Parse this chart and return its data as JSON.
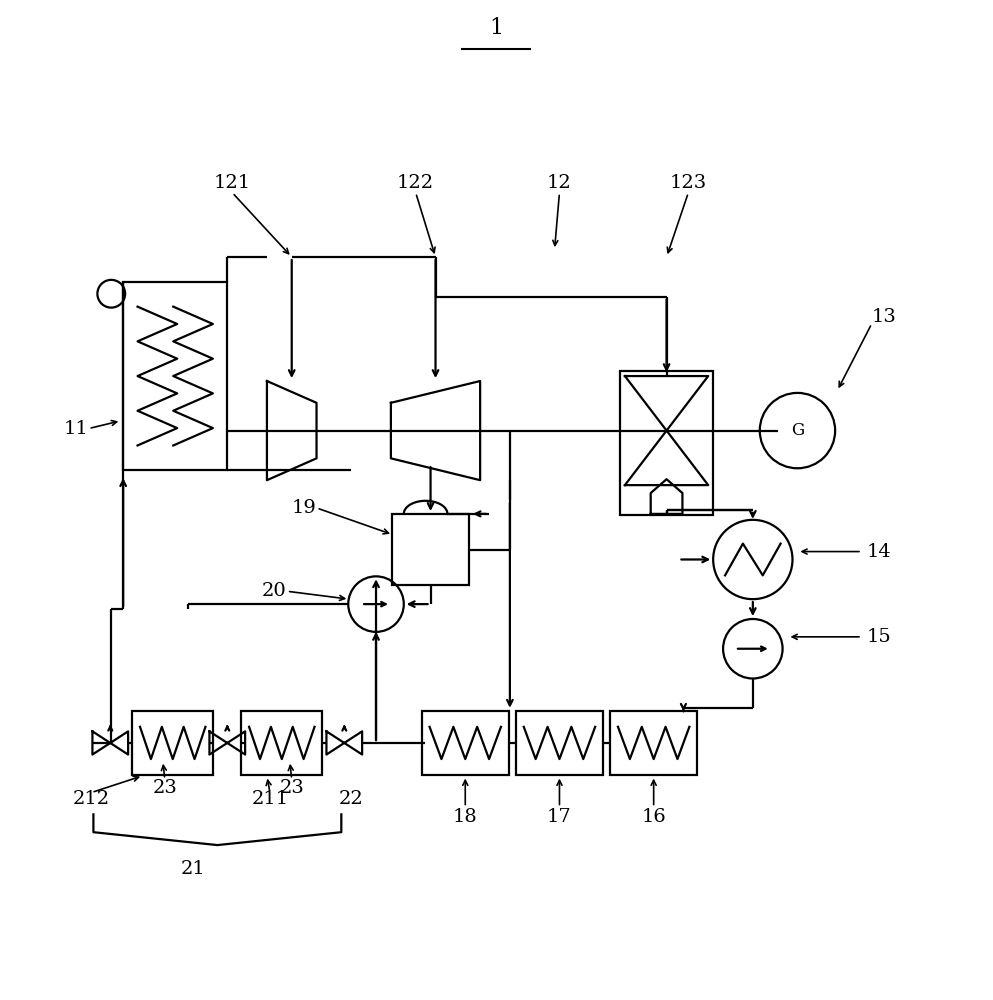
{
  "bg_color": "#ffffff",
  "lc": "#000000",
  "lw": 1.6,
  "fs": 14,
  "figw": 9.93,
  "figh": 10.0,
  "dpi": 100
}
